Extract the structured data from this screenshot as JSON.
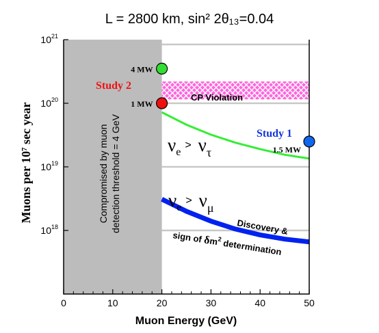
{
  "chart_data": {
    "type": "line",
    "title": "L = 2800 km, sin² 2θ₁₃=0.04",
    "xlabel": "Muon Energy  (GeV)",
    "ylabel": "Muons per 10⁷ sec year",
    "x_ticks": [
      "0",
      "10",
      "20",
      "30",
      "40",
      "50"
    ],
    "y_ticks": [
      {
        "base": "10",
        "exp": "18",
        "value": 1e+18
      },
      {
        "base": "10",
        "exp": "19",
        "value": 1e+19
      },
      {
        "base": "10",
        "exp": "20",
        "value": 1e+20
      },
      {
        "base": "10",
        "exp": "21",
        "value": 1e+21
      }
    ],
    "xlim": [
      0,
      50
    ],
    "ylim": [
      1e+17,
      1e+21
    ],
    "log_y": true,
    "grid": "horizontal",
    "shaded_region": {
      "x_range": [
        0,
        20
      ],
      "label_line1": "Compromised by muon",
      "label_line2": "detection threshold = 4 GeV",
      "color": "#bcbcbc"
    },
    "band": {
      "name": "CP Violation",
      "x": [
        20,
        50
      ],
      "upper": [
        2.2e+20,
        2.2e+20
      ],
      "lower": [
        1.15e+20,
        1.15e+20
      ],
      "color": "#ff44cc"
    },
    "series": [
      {
        "label_main": "ν",
        "label_sub1": "e",
        "label_arrow": ">",
        "label_second": "ν",
        "label_sub2": "τ",
        "color": "#33ee33",
        "x": [
          20,
          25,
          30,
          35,
          40,
          45,
          50
        ],
        "values": [
          7.2e+19,
          4.6e+19,
          3.2e+19,
          2.4e+19,
          1.9e+19,
          1.55e+19,
          1.35e+19
        ]
      },
      {
        "label_main": "ν",
        "label_sub1": "e",
        "label_arrow": ">",
        "label_second": "ν",
        "label_sub2": "μ",
        "color": "#0022ee",
        "x": [
          20,
          25,
          30,
          35,
          40,
          45,
          50
        ],
        "values": [
          3.1e+18,
          2e+18,
          1.4e+18,
          1.05e+18,
          8.5e+17,
          7.3e+17,
          6.6e+17
        ]
      }
    ],
    "annotations": {
      "cp_violation": "CP  Violation",
      "discovery": "Discovery &",
      "sign_prefix": "sign of ",
      "delta": "δ",
      "m": "m",
      "m_exp": "2",
      "determination": " determination"
    },
    "points": [
      {
        "name": "4 MW",
        "x": 20,
        "y": 3.5e+20,
        "color": "#33dd33"
      },
      {
        "name": "1 MW",
        "x": 20,
        "y": 1e+20,
        "color": "#ee1111"
      },
      {
        "name": "1.5 MW",
        "x": 50,
        "y": 2.5e+19,
        "color": "#1166ee"
      }
    ],
    "labels": {
      "study2": "Study 2",
      "study1": "Study 1",
      "study2_color": "#ee1111",
      "study1_color": "#1133dd"
    }
  }
}
